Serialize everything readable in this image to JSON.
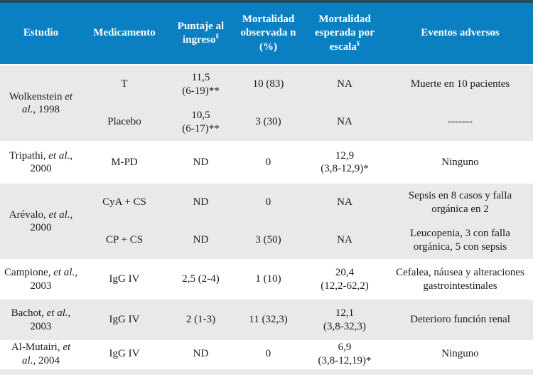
{
  "colors": {
    "top_border": "#1e4f66",
    "header_bg": "#0a80c3",
    "header_text": "#ffffff",
    "row_alt_bg": "#e9e9e9",
    "body_text": "#1b1b1b"
  },
  "header": {
    "cols": [
      {
        "label": "Estudio",
        "sup": ""
      },
      {
        "label": "Medicamento",
        "sup": ""
      },
      {
        "label": "Puntaje al ingreso",
        "sup": "¥"
      },
      {
        "label": "Mortalidad observada n (%)",
        "sup": ""
      },
      {
        "label": "Mortalidad esperada por escala",
        "sup": "¥"
      },
      {
        "label": "Eventos adversos",
        "sup": ""
      }
    ]
  },
  "groups": [
    {
      "study": {
        "name": "Wolkenstein",
        "etal": "et al.,",
        "year": "1998"
      },
      "rows": [
        {
          "med": "T",
          "score1": "11,5",
          "score2": "(6-19)**",
          "observed": "10 (83)",
          "expected1": "NA",
          "expected2": "",
          "events": "Muerte en 10 pacientes"
        },
        {
          "med": "Placebo",
          "score1": "10,5",
          "score2": "(6-17)**",
          "observed": "3 (30)",
          "expected1": "NA",
          "expected2": "",
          "events": "-------"
        }
      ]
    },
    {
      "study": {
        "name": "Tripathi,",
        "etal": "et al.,",
        "year": "2000"
      },
      "rows": [
        {
          "med": "M-PD",
          "score1": "ND",
          "score2": "",
          "observed": "0",
          "expected1": "12,9",
          "expected2": "(3,8-12,9)*",
          "events": "Ninguno"
        }
      ]
    },
    {
      "study": {
        "name": "Arévalo,",
        "etal": "et al.,",
        "year": "2000"
      },
      "rows": [
        {
          "med": "CyA + CS",
          "score1": "ND",
          "score2": "",
          "observed": "0",
          "expected1": "NA",
          "expected2": "",
          "events": "Sepsis en 8 casos y falla orgánica en 2"
        },
        {
          "med": "CP + CS",
          "score1": "ND",
          "score2": "",
          "observed": "3 (50)",
          "expected1": "NA",
          "expected2": "",
          "events": "Leucopenia, 3 con falla orgánica, 5 con sepsis"
        }
      ]
    },
    {
      "study": {
        "name": "Campione,",
        "etal": "et al.,",
        "year": "2003"
      },
      "rows": [
        {
          "med": "IgG IV",
          "score1": "2,5 (2-4)",
          "score2": "",
          "observed": "1 (10)",
          "expected1": "20,4",
          "expected2": "(12,2-62,2)",
          "events": "Cefalea, náusea y alteraciones gastrointestinales"
        }
      ]
    },
    {
      "study": {
        "name": "Bachot,",
        "etal": "et al.,",
        "year": "2003"
      },
      "rows": [
        {
          "med": "IgG IV",
          "score1": "2 (1-3)",
          "score2": "",
          "observed": "11 (32,3)",
          "expected1": "12,1",
          "expected2": "(3,8-32,3)",
          "events": "Deterioro función renal"
        }
      ]
    },
    {
      "study": {
        "name": "Al-Mutairi,",
        "etal": "et al.,",
        "year": "2004"
      },
      "rows": [
        {
          "med": "IgG IV",
          "score1": "ND",
          "score2": "",
          "observed": "0",
          "expected1": "6,9",
          "expected2": "(3,8-12,19)*",
          "events": "Ninguno"
        }
      ]
    }
  ]
}
